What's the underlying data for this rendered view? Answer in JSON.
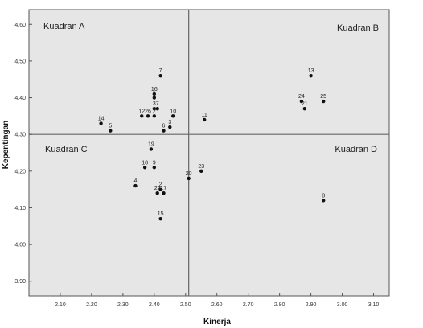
{
  "chart_data": {
    "type": "scatter",
    "title": "",
    "xlabel": "Kinerja",
    "ylabel": "Kepentingan",
    "xlim": [
      2.0,
      3.15
    ],
    "ylim": [
      3.86,
      4.64
    ],
    "x_ticks": [
      "2.10",
      "2.20",
      "2.30",
      "2.40",
      "2.50",
      "2.60",
      "2.70",
      "2.80",
      "2.90",
      "3.00",
      "3.10"
    ],
    "y_ticks": [
      "3.90",
      "4.00",
      "4.10",
      "4.20",
      "4.30",
      "4.40",
      "4.50",
      "4.60"
    ],
    "grid": false,
    "reference_lines": {
      "x": 2.51,
      "y": 4.3
    },
    "quadrants": [
      "Kuadran A",
      "Kuadran B",
      "Kuadran C",
      "Kuadran D"
    ],
    "colors": {
      "plot_background": "#e6e6e6",
      "point": "#111111",
      "reference_line": "#666666"
    },
    "points": [
      {
        "label": "7",
        "x": 2.42,
        "y": 4.46
      },
      {
        "label": "16",
        "x": 2.4,
        "y": 4.41
      },
      {
        "label": "1",
        "x": 2.4,
        "y": 4.4
      },
      {
        "label": "3",
        "x": 2.4,
        "y": 4.37
      },
      {
        "label": "7",
        "x": 2.41,
        "y": 4.37
      },
      {
        "label": "10",
        "x": 2.46,
        "y": 4.35
      },
      {
        "label": "12",
        "x": 2.36,
        "y": 4.35
      },
      {
        "label": "26",
        "x": 2.38,
        "y": 4.35
      },
      {
        "label": "2",
        "x": 2.4,
        "y": 4.35
      },
      {
        "label": "14",
        "x": 2.23,
        "y": 4.33
      },
      {
        "label": "5",
        "x": 2.26,
        "y": 4.31
      },
      {
        "label": "6",
        "x": 2.43,
        "y": 4.31
      },
      {
        "label": "3",
        "x": 2.45,
        "y": 4.32
      },
      {
        "label": "11",
        "x": 2.56,
        "y": 4.34
      },
      {
        "label": "19",
        "x": 2.39,
        "y": 4.26
      },
      {
        "label": "18",
        "x": 2.37,
        "y": 4.21
      },
      {
        "label": "9",
        "x": 2.4,
        "y": 4.21
      },
      {
        "label": "4",
        "x": 2.34,
        "y": 4.16
      },
      {
        "label": "2",
        "x": 2.42,
        "y": 4.15
      },
      {
        "label": "22",
        "x": 2.41,
        "y": 4.14
      },
      {
        "label": "17",
        "x": 2.43,
        "y": 4.14
      },
      {
        "label": "15",
        "x": 2.42,
        "y": 4.07
      },
      {
        "label": "23",
        "x": 2.55,
        "y": 4.2
      },
      {
        "label": "20",
        "x": 2.51,
        "y": 4.18
      },
      {
        "label": "13",
        "x": 2.9,
        "y": 4.46
      },
      {
        "label": "24",
        "x": 2.87,
        "y": 4.39
      },
      {
        "label": "25",
        "x": 2.94,
        "y": 4.39
      },
      {
        "label": "21",
        "x": 2.88,
        "y": 4.37
      },
      {
        "label": "8",
        "x": 2.94,
        "y": 4.12
      }
    ]
  }
}
